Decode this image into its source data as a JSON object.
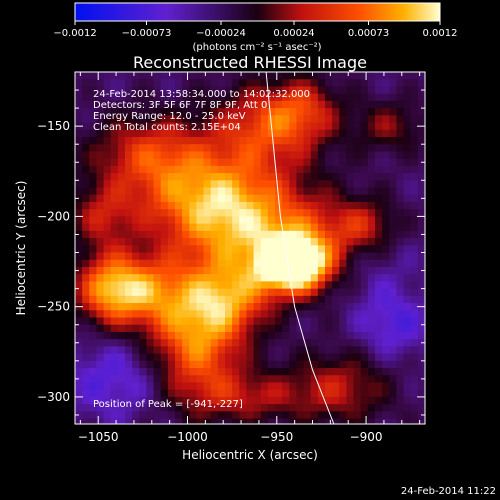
{
  "chart_data": {
    "type": "heatmap",
    "title": "Reconstructed RHESSI Image",
    "xlabel": "Heliocentric X (arcsec)",
    "ylabel": "Heliocentric Y (arcsec)",
    "xlim": [
      -1063,
      -867
    ],
    "ylim": [
      -315,
      -120
    ],
    "xticks": [
      -1050,
      -1000,
      -950,
      -900
    ],
    "yticks": [
      -300,
      -250,
      -200,
      -150
    ],
    "colorbar": {
      "label": "(photons cm⁻² s⁻¹ asec⁻²)",
      "ticks": [
        "-0.0012",
        "-0.00073",
        "-0.00024",
        "0.00024",
        "0.00073",
        "0.0012"
      ],
      "range": [
        -0.0012,
        0.0012
      ]
    },
    "info_lines": [
      "24-Feb-2014 13:58:34.000 to 14:02:32.000",
      "Detectors: 3F 5F 6F 7F 8F 9F, Att 0",
      "Energy Range: 12.0 - 25.0 keV",
      "Clean     Total counts: 2.15E+04"
    ],
    "peak_label": "Position of Peak = [-941,-227]",
    "peak": {
      "x": -941,
      "y": -227,
      "value": 0.0012
    },
    "background_level": -0.0003,
    "sources": [
      {
        "x": -941,
        "y": -227,
        "amp": 0.00175,
        "sx": 13,
        "sy": 10
      },
      {
        "x": -930,
        "y": -215,
        "amp": 0.00075,
        "sx": 25,
        "sy": 18
      },
      {
        "x": -975,
        "y": -205,
        "amp": 0.0009,
        "sx": 26,
        "sy": 20
      },
      {
        "x": -995,
        "y": -185,
        "amp": 0.0008,
        "sx": 32,
        "sy": 18
      },
      {
        "x": -1022,
        "y": -163,
        "amp": 0.0006,
        "sx": 22,
        "sy": 14
      },
      {
        "x": -955,
        "y": -150,
        "amp": 0.0008,
        "sx": 22,
        "sy": 16
      },
      {
        "x": -935,
        "y": -140,
        "amp": 0.0005,
        "sx": 14,
        "sy": 12
      },
      {
        "x": -1043,
        "y": -240,
        "amp": 0.00115,
        "sx": 14,
        "sy": 14
      },
      {
        "x": -1020,
        "y": -242,
        "amp": 0.0007,
        "sx": 16,
        "sy": 14
      },
      {
        "x": -995,
        "y": -268,
        "amp": 0.0011,
        "sx": 18,
        "sy": 24
      },
      {
        "x": -975,
        "y": -245,
        "amp": 0.0008,
        "sx": 16,
        "sy": 14
      },
      {
        "x": -900,
        "y": -205,
        "amp": 0.0005,
        "sx": 12,
        "sy": 10
      },
      {
        "x": -915,
        "y": -295,
        "amp": 0.0006,
        "sx": 20,
        "sy": 14
      },
      {
        "x": -965,
        "y": -300,
        "amp": 0.0005,
        "sx": 22,
        "sy": 10
      },
      {
        "x": -1048,
        "y": -200,
        "amp": 0.0005,
        "sx": 12,
        "sy": 12
      },
      {
        "x": -887,
        "y": -150,
        "amp": 0.00045,
        "sx": 14,
        "sy": 10
      },
      {
        "x": -885,
        "y": -260,
        "amp": -0.0004,
        "sx": 14,
        "sy": 14
      },
      {
        "x": -1040,
        "y": -290,
        "amp": -0.0004,
        "sx": 20,
        "sy": 16
      },
      {
        "x": -900,
        "y": -225,
        "amp": -0.0003,
        "sx": 18,
        "sy": 16
      }
    ],
    "limb_curve": [
      [
        -956,
        -120
      ],
      [
        -948,
        -200
      ],
      [
        -940,
        -250
      ],
      [
        -930,
        -285
      ],
      [
        -918,
        -315
      ]
    ]
  },
  "timestamp": "24-Feb-2014 11:22"
}
